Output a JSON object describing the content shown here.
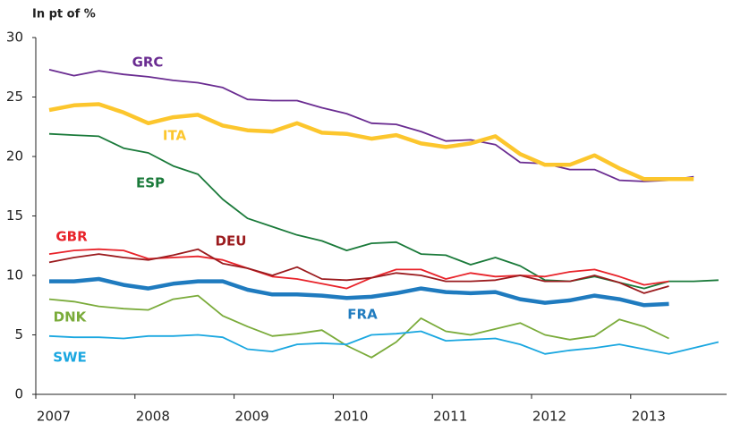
{
  "chart_data": {
    "type": "line",
    "y_label": "In pt of  %",
    "categories": [
      "2007",
      null,
      null,
      null,
      "2008",
      null,
      null,
      null,
      "2009",
      null,
      null,
      null,
      "2010",
      null,
      null,
      null,
      "2011",
      null,
      null,
      null,
      "2012",
      null,
      null,
      null,
      "2013",
      null,
      null,
      null
    ],
    "ylim": [
      0,
      30
    ],
    "yticks": [
      0,
      5,
      10,
      15,
      20,
      25,
      30
    ],
    "series": [
      {
        "name": "GRC",
        "color": "#6a2c91",
        "values": [
          27.3,
          26.8,
          27.2,
          26.9,
          26.7,
          26.4,
          26.2,
          25.8,
          24.8,
          24.7,
          24.7,
          24.1,
          23.6,
          22.8,
          22.7,
          22.1,
          21.3,
          21.4,
          21.0,
          19.5,
          19.4,
          18.9,
          18.9,
          18.0,
          17.9,
          18.0,
          18.3,
          null
        ]
      },
      {
        "name": "ITA",
        "color": "#fcc62d",
        "values": [
          23.9,
          24.3,
          24.4,
          23.7,
          22.8,
          23.3,
          23.5,
          22.6,
          22.2,
          22.1,
          22.8,
          22.0,
          21.9,
          21.5,
          21.8,
          21.1,
          20.8,
          21.1,
          21.7,
          20.2,
          19.3,
          19.3,
          20.1,
          19.0,
          18.1,
          18.1,
          18.1,
          null
        ]
      },
      {
        "name": "ESP",
        "color": "#1a7a3a",
        "values": [
          21.9,
          21.8,
          21.7,
          20.7,
          20.3,
          19.2,
          18.5,
          16.4,
          14.8,
          14.1,
          13.4,
          12.9,
          12.1,
          12.7,
          12.8,
          11.8,
          11.7,
          10.9,
          11.5,
          10.8,
          9.6,
          9.5,
          9.9,
          9.4,
          8.9,
          9.5,
          9.5,
          9.6
        ]
      },
      {
        "name": "GBR",
        "color": "#e8232a",
        "values": [
          11.8,
          12.1,
          12.2,
          12.1,
          11.4,
          11.5,
          11.6,
          11.3,
          10.6,
          9.9,
          9.7,
          9.3,
          8.9,
          9.8,
          10.5,
          10.5,
          9.7,
          10.2,
          9.9,
          10.0,
          9.9,
          10.3,
          10.5,
          9.9,
          9.2,
          9.5,
          null,
          null
        ]
      },
      {
        "name": "DEU",
        "color": "#9b1b1e",
        "values": [
          11.1,
          11.5,
          11.8,
          11.5,
          11.3,
          11.7,
          12.2,
          11.0,
          10.6,
          10.0,
          10.7,
          9.7,
          9.6,
          9.8,
          10.2,
          10.0,
          9.5,
          9.5,
          9.6,
          10.0,
          9.5,
          9.5,
          10.0,
          9.4,
          8.5,
          9.1,
          null,
          null
        ]
      },
      {
        "name": "FRA",
        "color": "#1f7bbf",
        "values": [
          9.5,
          9.5,
          9.7,
          9.2,
          8.9,
          9.3,
          9.5,
          9.5,
          8.8,
          8.4,
          8.4,
          8.3,
          8.1,
          8.2,
          8.5,
          8.9,
          8.6,
          8.5,
          8.6,
          8.0,
          7.7,
          7.9,
          8.3,
          8.0,
          7.5,
          7.6,
          null,
          null
        ]
      },
      {
        "name": "DNK",
        "color": "#7aab3a",
        "values": [
          8.0,
          7.8,
          7.4,
          7.2,
          7.1,
          8.0,
          8.3,
          6.6,
          5.7,
          4.9,
          5.1,
          5.4,
          4.1,
          3.1,
          4.4,
          6.4,
          5.3,
          5.0,
          5.5,
          6.0,
          5.0,
          4.6,
          4.9,
          6.3,
          5.7,
          4.7,
          null,
          null
        ]
      },
      {
        "name": "SWE",
        "color": "#1aa7e0",
        "values": [
          4.9,
          4.8,
          4.8,
          4.7,
          4.9,
          4.9,
          5.0,
          4.8,
          3.8,
          3.6,
          4.2,
          4.3,
          4.2,
          5.0,
          5.1,
          5.3,
          4.5,
          4.6,
          4.7,
          4.2,
          3.4,
          3.7,
          3.9,
          4.2,
          3.8,
          3.4,
          3.9,
          4.4
        ]
      }
    ]
  }
}
